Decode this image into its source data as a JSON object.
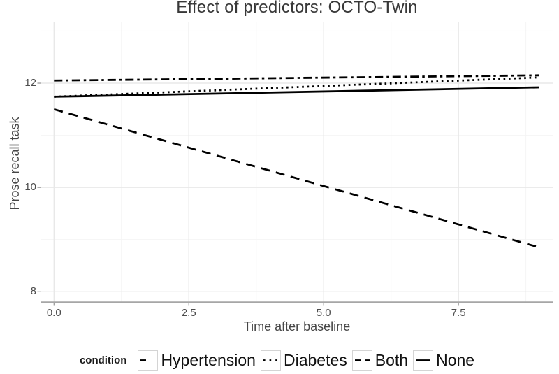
{
  "title": "Effect of predictors: OCTO-Twin",
  "axes": {
    "x_title": "Time after baseline",
    "y_title": "Prose recall task"
  },
  "legend": {
    "title": "condition",
    "items": [
      {
        "label": "Hypertension",
        "linetype": "dashdot"
      },
      {
        "label": "Diabetes",
        "linetype": "dotted"
      },
      {
        "label": "Both",
        "linetype": "dashed"
      },
      {
        "label": "None",
        "linetype": "solid"
      }
    ]
  },
  "chart_data": {
    "type": "line",
    "title": "Effect of predictors: OCTO-Twin",
    "xlabel": "Time after baseline",
    "ylabel": "Prose recall task",
    "xlim": [
      -0.25,
      9.26
    ],
    "ylim": [
      7.79,
      13.18
    ],
    "x_ticks": [
      0.0,
      2.5,
      5.0,
      7.5
    ],
    "x_tick_labels": [
      "0.0",
      "2.5",
      "5.0",
      "7.5"
    ],
    "x_minor_ticks": [
      1.25,
      3.75,
      6.25,
      8.75
    ],
    "y_ticks": [
      8,
      10,
      12
    ],
    "y_tick_labels": [
      "8",
      "10",
      "12"
    ],
    "y_minor_ticks": [
      9,
      11,
      13
    ],
    "grid": true,
    "legend_title": "condition",
    "legend_position": "bottom",
    "line_color": "#000000",
    "series": [
      {
        "name": "Hypertension",
        "linetype": "dashdot",
        "x": [
          0,
          9
        ],
        "y": [
          12.05,
          12.15
        ]
      },
      {
        "name": "Diabetes",
        "linetype": "dotted",
        "x": [
          0,
          9
        ],
        "y": [
          11.74,
          12.11
        ]
      },
      {
        "name": "Both",
        "linetype": "dashed",
        "x": [
          0,
          9
        ],
        "y": [
          11.5,
          8.85
        ]
      },
      {
        "name": "None",
        "linetype": "solid",
        "x": [
          0,
          9
        ],
        "y": [
          11.74,
          11.92
        ]
      }
    ]
  }
}
